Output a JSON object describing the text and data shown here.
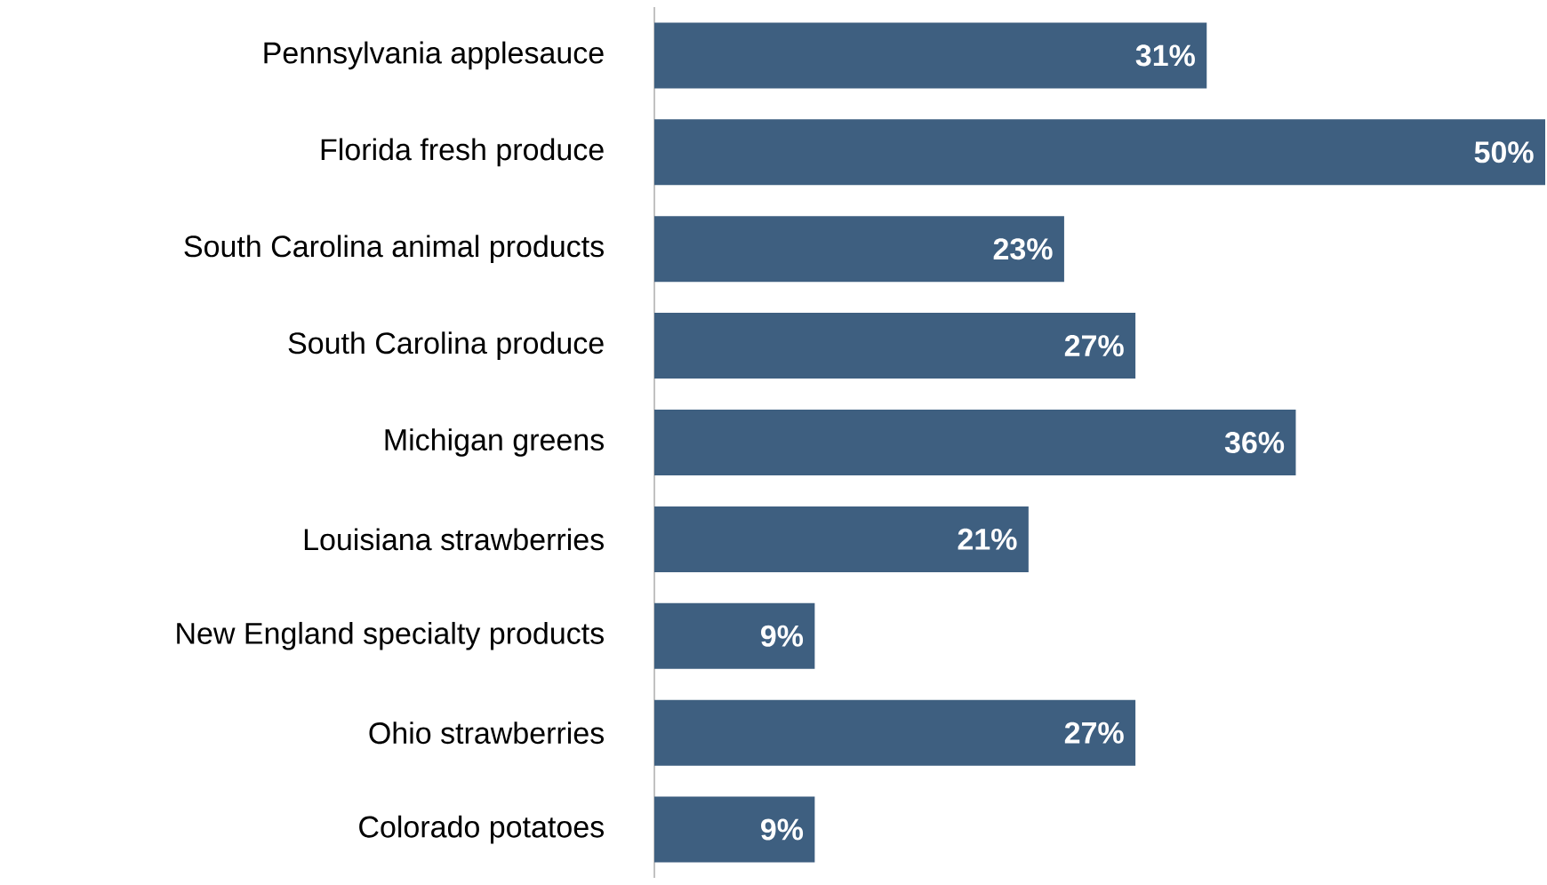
{
  "chart_data": {
    "type": "bar",
    "orientation": "horizontal",
    "categories": [
      "Pennsylvania applesauce",
      "Florida fresh produce",
      "South Carolina animal products",
      "South Carolina produce",
      "Michigan greens",
      "Louisiana strawberries",
      "New England specialty products",
      "Ohio strawberries",
      "Colorado potatoes"
    ],
    "values": [
      31,
      50,
      23,
      27,
      36,
      21,
      9,
      27,
      9
    ],
    "value_labels": [
      "31%",
      "50%",
      "23%",
      "27%",
      "36%",
      "21%",
      "9%",
      "27%",
      "9%"
    ],
    "color": "#3e5f80",
    "xlim": [
      0,
      50
    ],
    "tick_labels": "y"
  }
}
